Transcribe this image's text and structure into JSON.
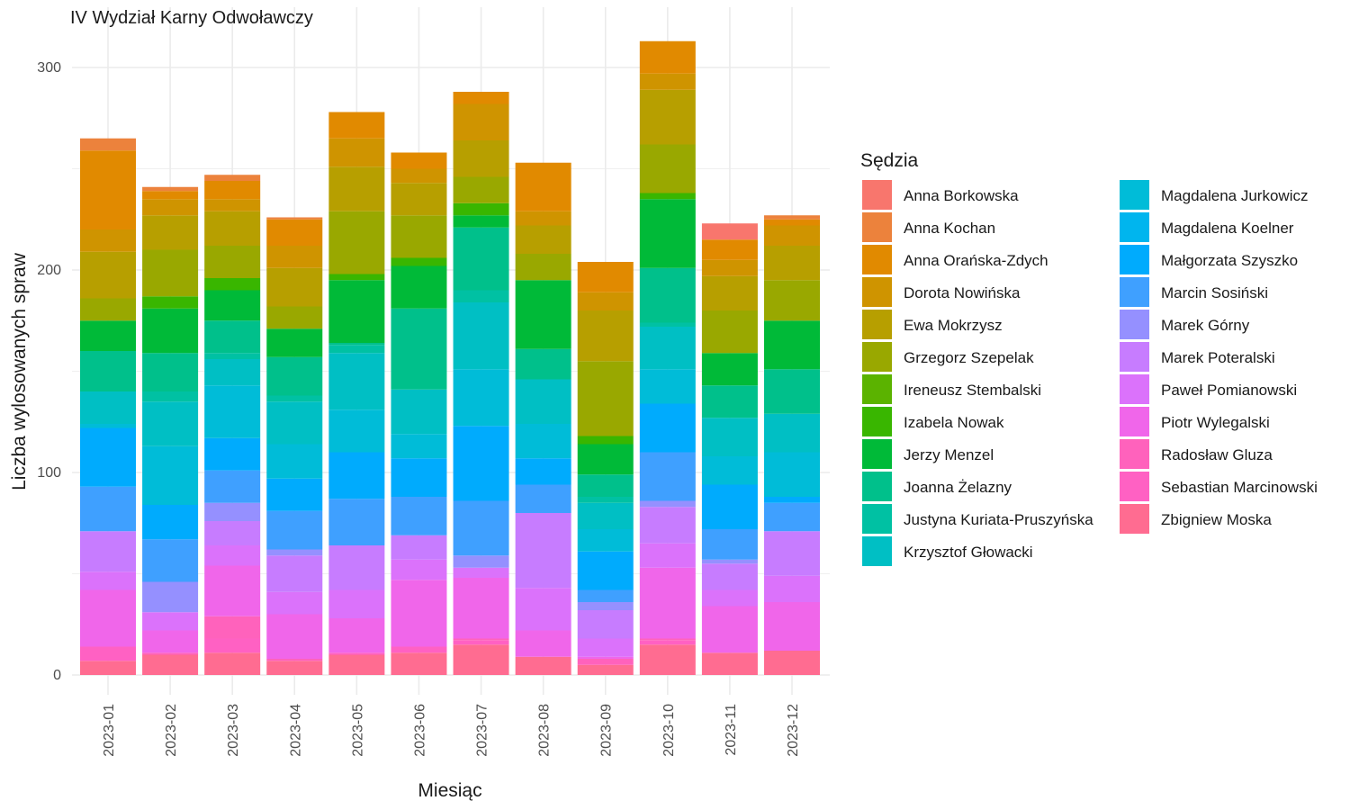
{
  "chart_data": {
    "type": "bar",
    "stacked": true,
    "title": "IV Wydział Karny Odwoławczy",
    "xlabel": "Miesiąc",
    "ylabel": "Liczba wylosowanych spraw",
    "ylim": [
      0,
      320
    ],
    "yticks": [
      0,
      100,
      200,
      300
    ],
    "grid": true,
    "legend": {
      "title": "Sędzia",
      "position": "right"
    },
    "categories": [
      "2023-01",
      "2023-02",
      "2023-03",
      "2023-04",
      "2023-05",
      "2023-06",
      "2023-07",
      "2023-08",
      "2023-09",
      "2023-10",
      "2023-11",
      "2023-12"
    ],
    "series": [
      {
        "name": "Zbigniew Moska",
        "color": "#FF6C91",
        "values": [
          7,
          10,
          11,
          7,
          10,
          11,
          15,
          9,
          5,
          15,
          11,
          12
        ]
      },
      {
        "name": "Sebastian Marcinowski",
        "color": "#FF61C3",
        "values": [
          7,
          0,
          7,
          0,
          1,
          3,
          2,
          0,
          0,
          2,
          0,
          0
        ]
      },
      {
        "name": "Radosław Gluza",
        "color": "#FF62BC",
        "values": [
          0,
          1,
          11,
          1,
          0,
          0,
          1,
          0,
          3,
          1,
          0,
          0
        ]
      },
      {
        "name": "Piotr Wylegalski",
        "color": "#F066EA",
        "values": [
          28,
          11,
          25,
          22,
          17,
          33,
          30,
          13,
          1,
          35,
          23,
          24
        ]
      },
      {
        "name": "Paweł Pomianowski",
        "color": "#DB72FB",
        "values": [
          9,
          9,
          10,
          11,
          14,
          10,
          5,
          21,
          9,
          12,
          8,
          13
        ]
      },
      {
        "name": "Marek Poteralski",
        "color": "#C77CFF",
        "values": [
          20,
          0,
          12,
          18,
          22,
          12,
          0,
          37,
          14,
          18,
          13,
          22
        ]
      },
      {
        "name": "Marek Górny",
        "color": "#9590FF",
        "values": [
          0,
          15,
          9,
          3,
          0,
          0,
          6,
          0,
          4,
          3,
          2,
          0
        ]
      },
      {
        "name": "Marcin Sosiński",
        "color": "#3FA0FF",
        "values": [
          22,
          21,
          16,
          19,
          23,
          19,
          27,
          14,
          6,
          24,
          15,
          14
        ]
      },
      {
        "name": "Małgorzata Szyszko",
        "color": "#00ABFD",
        "values": [
          29,
          17,
          16,
          16,
          23,
          19,
          37,
          13,
          19,
          24,
          22,
          3
        ]
      },
      {
        "name": "Magdalena Koelner",
        "color": "#00B5EE",
        "values": [
          0,
          0,
          0,
          0,
          0,
          0,
          0,
          0,
          0,
          0,
          0,
          0
        ]
      },
      {
        "name": "Magdalena Jurkowicz",
        "color": "#00BCD8",
        "values": [
          2,
          29,
          26,
          17,
          21,
          12,
          28,
          17,
          11,
          17,
          14,
          22
        ]
      },
      {
        "name": "Krzysztof Głowacki",
        "color": "#00BFC4",
        "values": [
          16,
          22,
          13,
          21,
          28,
          22,
          33,
          22,
          13,
          21,
          19,
          19
        ]
      },
      {
        "name": "Justyna Kuriata-Pruszyńska",
        "color": "#00C1A3",
        "values": [
          0,
          5,
          3,
          3,
          4,
          0,
          6,
          0,
          3,
          2,
          0,
          0
        ]
      },
      {
        "name": "Joanna Żelazny",
        "color": "#00C08B",
        "values": [
          20,
          19,
          16,
          19,
          1,
          40,
          31,
          15,
          11,
          27,
          16,
          22
        ]
      },
      {
        "name": "Jerzy Menzel",
        "color": "#00BA38",
        "values": [
          15,
          22,
          15,
          14,
          31,
          21,
          6,
          34,
          15,
          34,
          16,
          24
        ]
      },
      {
        "name": "Izabela Nowak",
        "color": "#39B600",
        "values": [
          0,
          6,
          6,
          0,
          3,
          4,
          6,
          0,
          4,
          3,
          0,
          0
        ]
      },
      {
        "name": "Ireneusz Stembalski",
        "color": "#5BB300",
        "values": [
          0,
          0,
          0,
          0,
          0,
          0,
          0,
          0,
          0,
          0,
          0,
          0
        ]
      },
      {
        "name": "Grzegorz Szepelak",
        "color": "#99A800",
        "values": [
          11,
          23,
          16,
          11,
          31,
          21,
          13,
          13,
          37,
          24,
          21,
          20
        ]
      },
      {
        "name": "Ewa Mokrzysz",
        "color": "#B79F00",
        "values": [
          23,
          17,
          17,
          19,
          22,
          16,
          18,
          14,
          25,
          27,
          17,
          17
        ]
      },
      {
        "name": "Dorota Nowińska",
        "color": "#CF9400",
        "values": [
          11,
          8,
          6,
          11,
          14,
          7,
          18,
          7,
          9,
          8,
          8,
          10
        ]
      },
      {
        "name": "Anna Orańska-Zdych",
        "color": "#E18A00",
        "values": [
          39,
          4,
          9,
          13,
          13,
          8,
          6,
          24,
          15,
          16,
          10,
          3
        ]
      },
      {
        "name": "Anna Kochan",
        "color": "#EC823C",
        "values": [
          6,
          2,
          3,
          1,
          0,
          0,
          0,
          0,
          0,
          0,
          0,
          2
        ]
      },
      {
        "name": "Anna Borkowska",
        "color": "#F8766D",
        "values": [
          0,
          0,
          0,
          0,
          0,
          0,
          0,
          0,
          0,
          0,
          8,
          0
        ]
      }
    ],
    "legend_order": [
      "Anna Borkowska",
      "Anna Kochan",
      "Anna Orańska-Zdych",
      "Dorota Nowińska",
      "Ewa Mokrzysz",
      "Grzegorz Szepelak",
      "Ireneusz Stembalski",
      "Izabela Nowak",
      "Jerzy Menzel",
      "Joanna Żelazny",
      "Justyna Kuriata-Pruszyńska",
      "Krzysztof Głowacki",
      "Magdalena Jurkowicz",
      "Magdalena Koelner",
      "Małgorzata Szyszko",
      "Marcin Sosiński",
      "Marek Górny",
      "Marek Poteralski",
      "Paweł Pomianowski",
      "Piotr Wylegalski",
      "Radosław Gluza",
      "Sebastian Marcinowski",
      "Zbigniew Moska"
    ]
  }
}
